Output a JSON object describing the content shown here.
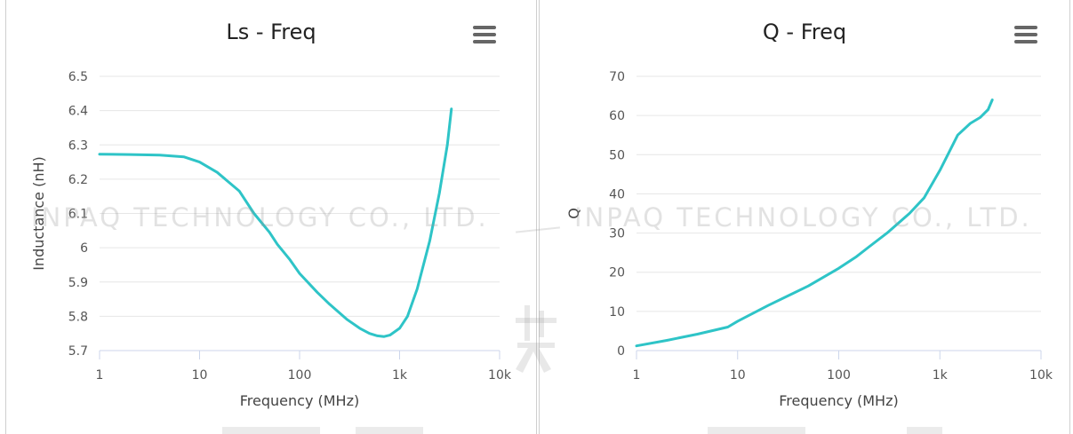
{
  "charts": {
    "left": {
      "title": "Ls - Freq",
      "menu_icon": "hamburger-menu-icon",
      "chart_data": {
        "type": "line",
        "title": "Ls - Freq",
        "xlabel": "Frequency (MHz)",
        "ylabel": "Inductance (nH)",
        "xscale": "log",
        "xlim": [
          1,
          10000
        ],
        "ylim": [
          5.7,
          6.5
        ],
        "x_ticks": [
          "1",
          "10",
          "100",
          "1k",
          "10k"
        ],
        "y_ticks": [
          "5.7",
          "5.8",
          "5.9",
          "6",
          "6.1",
          "6.2",
          "6.3",
          "6.4",
          "6.5"
        ],
        "grid": true,
        "series": [
          {
            "color": "#2ec4c7",
            "x": [
              1,
              2,
              4,
              7,
              10,
              15,
              25,
              35,
              50,
              60,
              80,
              100,
              150,
              200,
              300,
              400,
              500,
              600,
              700,
              800,
              1000,
              1200,
              1500,
              2000,
              2500,
              3000,
              3300
            ],
            "y": [
              6.273,
              6.272,
              6.27,
              6.265,
              6.25,
              6.22,
              6.165,
              6.1,
              6.045,
              6.01,
              5.965,
              5.925,
              5.87,
              5.835,
              5.79,
              5.765,
              5.75,
              5.743,
              5.741,
              5.745,
              5.765,
              5.8,
              5.88,
              6.02,
              6.16,
              6.3,
              6.405
            ]
          }
        ]
      }
    },
    "right": {
      "title": "Q - Freq",
      "menu_icon": "hamburger-menu-icon",
      "chart_data": {
        "type": "line",
        "title": "Q - Freq",
        "xlabel": "Frequency (MHz)",
        "ylabel": "Q",
        "xscale": "log",
        "xlim": [
          1,
          10000
        ],
        "ylim": [
          0,
          70
        ],
        "x_ticks": [
          "1",
          "10",
          "100",
          "1k",
          "10k"
        ],
        "y_ticks": [
          "0",
          "10",
          "20",
          "30",
          "40",
          "50",
          "60",
          "70"
        ],
        "grid": true,
        "series": [
          {
            "color": "#2ec4c7",
            "x": [
              1,
              2,
              4,
              8,
              10,
              20,
              50,
              100,
              150,
              200,
              300,
              500,
              700,
              1000,
              1500,
              2000,
              2500,
              3000,
              3300
            ],
            "y": [
              1.2,
              2.6,
              4.2,
              6.0,
              7.5,
              11.5,
              16.5,
              21,
              24,
              26.5,
              30,
              35,
              39,
              46,
              55,
              58,
              59.5,
              61.5,
              64
            ]
          }
        ]
      }
    }
  },
  "watermark": {
    "text_left": "INPAQ TECHNOLOGY CO., LTD.",
    "text_right": "INPAQ TECHNOLOGY CO., LTD."
  }
}
